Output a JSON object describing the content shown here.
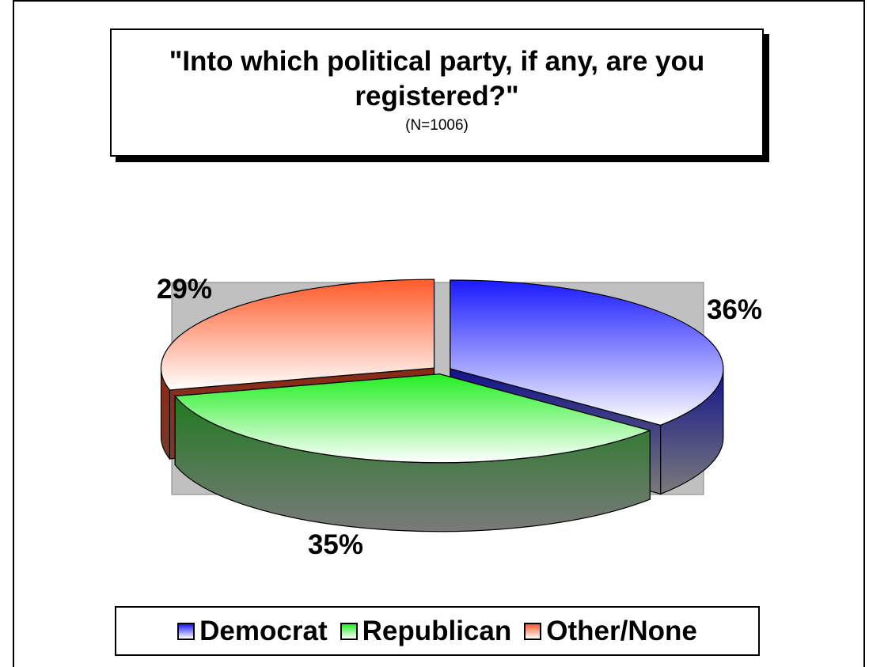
{
  "chart_data": {
    "type": "pie",
    "title": "\"Into which political party, if any, are you registered?\"",
    "subtitle": "(N=1006)",
    "labels": [
      "Democrat",
      "Republican",
      "Other/None"
    ],
    "values": [
      36,
      35,
      29
    ],
    "data_labels": [
      "36%",
      "35%",
      "29%"
    ],
    "colors": [
      "#1a1aff",
      "#1aee1a",
      "#ff5a2a"
    ],
    "legend_position": "bottom",
    "three_d": true,
    "exploded": true
  }
}
